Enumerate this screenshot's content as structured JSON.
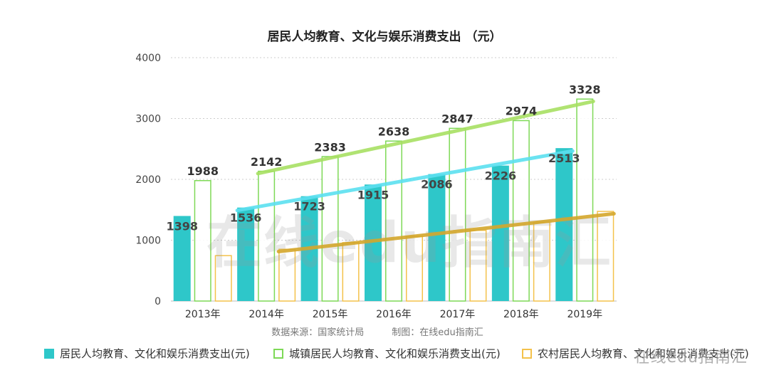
{
  "chart_data": {
    "type": "bar",
    "title": "居民人均教育、文化与娱乐消费支出 （元）",
    "categories": [
      "2013年",
      "2014年",
      "2015年",
      "2016年",
      "2017年",
      "2018年",
      "2019年"
    ],
    "ylim": [
      0,
      4000
    ],
    "yticks": [
      "0",
      "1000",
      "2000",
      "3000",
      "4000"
    ],
    "grid": true,
    "series": [
      {
        "name": "居民人均教育、文化和娱乐消费支出(元)",
        "style": "filled",
        "color": "#2ec7c9",
        "values": [
          1398,
          1536,
          1723,
          1915,
          2086,
          2226,
          2513
        ],
        "labels": [
          "1398",
          "1536",
          "1723",
          "1915",
          "2086",
          "2226",
          "2513"
        ]
      },
      {
        "name": "城镇居民人均教育、文化和娱乐消费支出(元)",
        "style": "outline",
        "color": "#7ed957",
        "values": [
          1988,
          2142,
          2383,
          2638,
          2847,
          2974,
          3328
        ],
        "labels": [
          "1988",
          "2142",
          "2383",
          "2638",
          "2847",
          "2974",
          "3328"
        ]
      },
      {
        "name": "农村居民人均教育、文化和娱乐消费支出(元)",
        "style": "outline",
        "color": "#f4c24b",
        "values": [
          755,
          860,
          969,
          1070,
          1171,
          1302,
          1482
        ],
        "labels": []
      }
    ],
    "trend_lines": [
      {
        "series": 1,
        "color": "#a8e063"
      },
      {
        "series": 0,
        "color": "#5ce0f0"
      },
      {
        "series": 2,
        "color": "#d4a72c"
      }
    ],
    "source_note": "数据来源：国家统计局　　　制图：在线edu指南汇",
    "watermark": "在线edu指南汇"
  },
  "legend": {
    "item0": "居民人均教育、文化和娱乐消费支出(元)",
    "item1": "城镇居民人均教育、文化和娱乐消费支出(元)",
    "item2": "农村居民人均教育、文化和娱乐消费支出(元)"
  },
  "corner_watermark": "在线edu指南汇"
}
